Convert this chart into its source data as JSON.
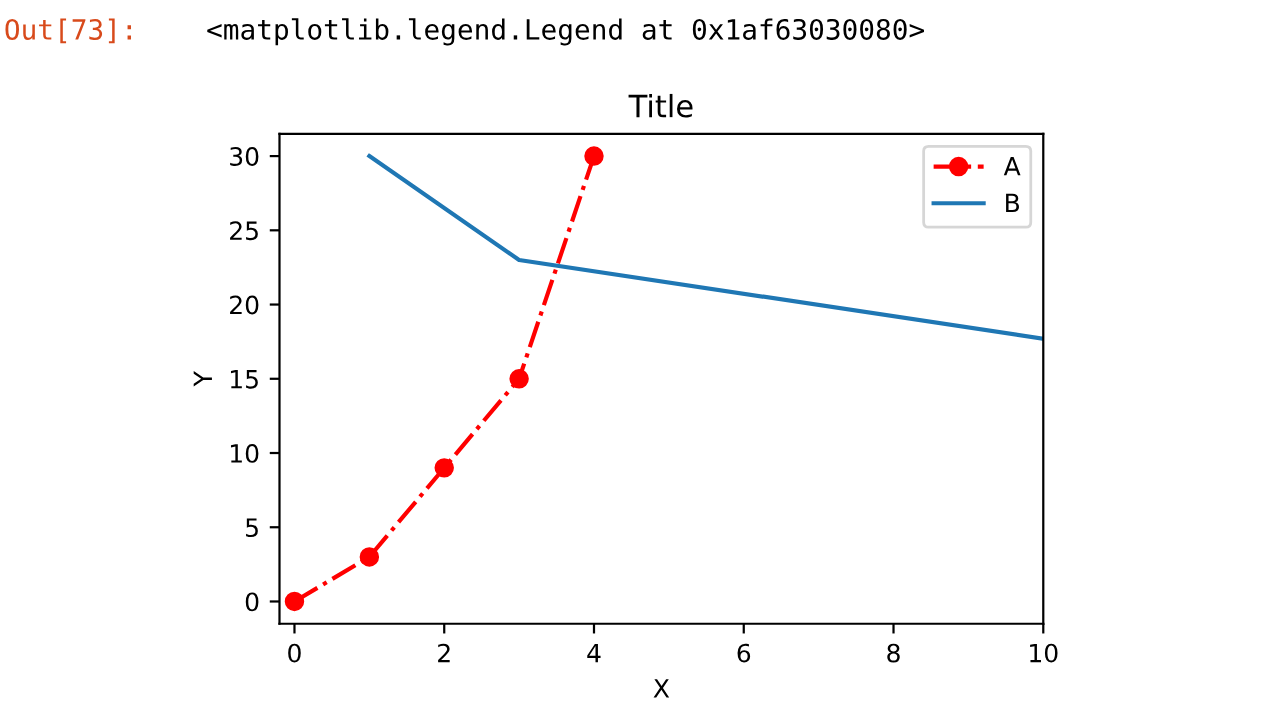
{
  "chart_data": {
    "type": "line",
    "title": "Title",
    "xlabel": "X",
    "ylabel": "Y",
    "annotations": [
      "Out[73]:",
      "<matplotlib.legend.Legend at 0x1af63030080>"
    ],
    "series": [
      {
        "name": "A",
        "color": "#ff0000",
        "x": [
          0,
          1,
          2,
          3,
          4
        ],
        "values": [
          0,
          3,
          9,
          15,
          30
        ],
        "marker": "circle",
        "line_style": "dashdot"
      },
      {
        "name": "B",
        "color": "#1f77b4",
        "x": [
          1,
          3,
          10
        ],
        "values": [
          30,
          23,
          17.7
        ],
        "marker": "none",
        "line_style": "solid"
      }
    ],
    "xlim": [
      -0.2,
      10
    ],
    "ylim": [
      -1.5,
      31.5
    ],
    "xticks": [
      0,
      2,
      4,
      6,
      8,
      10
    ],
    "yticks": [
      0,
      5,
      10,
      15,
      20,
      25,
      30
    ],
    "grid": false,
    "legend": "top right"
  }
}
